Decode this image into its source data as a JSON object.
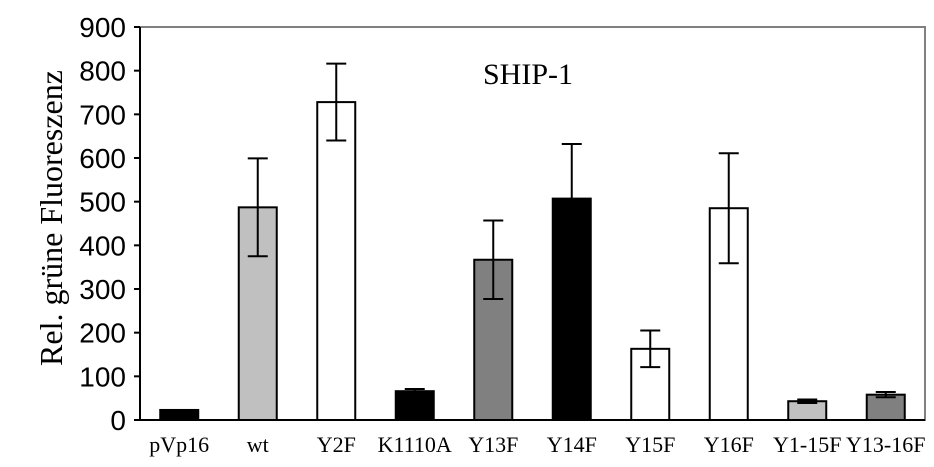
{
  "chart_data": {
    "type": "bar",
    "title": "SHIP-1",
    "xlabel": "",
    "ylabel": "Rel. grüne Fluoreszenz",
    "ylim": [
      0,
      900
    ],
    "yticks": [
      0,
      100,
      200,
      300,
      400,
      500,
      600,
      700,
      800,
      900
    ],
    "categories": [
      "pVp16",
      "wt",
      "Y2F",
      "K1110A",
      "Y13F",
      "Y14F",
      "Y15F",
      "Y16F",
      "Y1-15F",
      "Y13-16F"
    ],
    "values": [
      23,
      487,
      728,
      66,
      367,
      507,
      163,
      485,
      43,
      58
    ],
    "errors": [
      0,
      112,
      88,
      5,
      90,
      125,
      42,
      126,
      4,
      6
    ],
    "bar_colors": [
      "#000000",
      "#c0c0c0",
      "#ffffff",
      "#000000",
      "#808080",
      "#000000",
      "#ffffff",
      "#ffffff",
      "#c0c0c0",
      "#808080"
    ],
    "grid": false,
    "legend": "none"
  }
}
